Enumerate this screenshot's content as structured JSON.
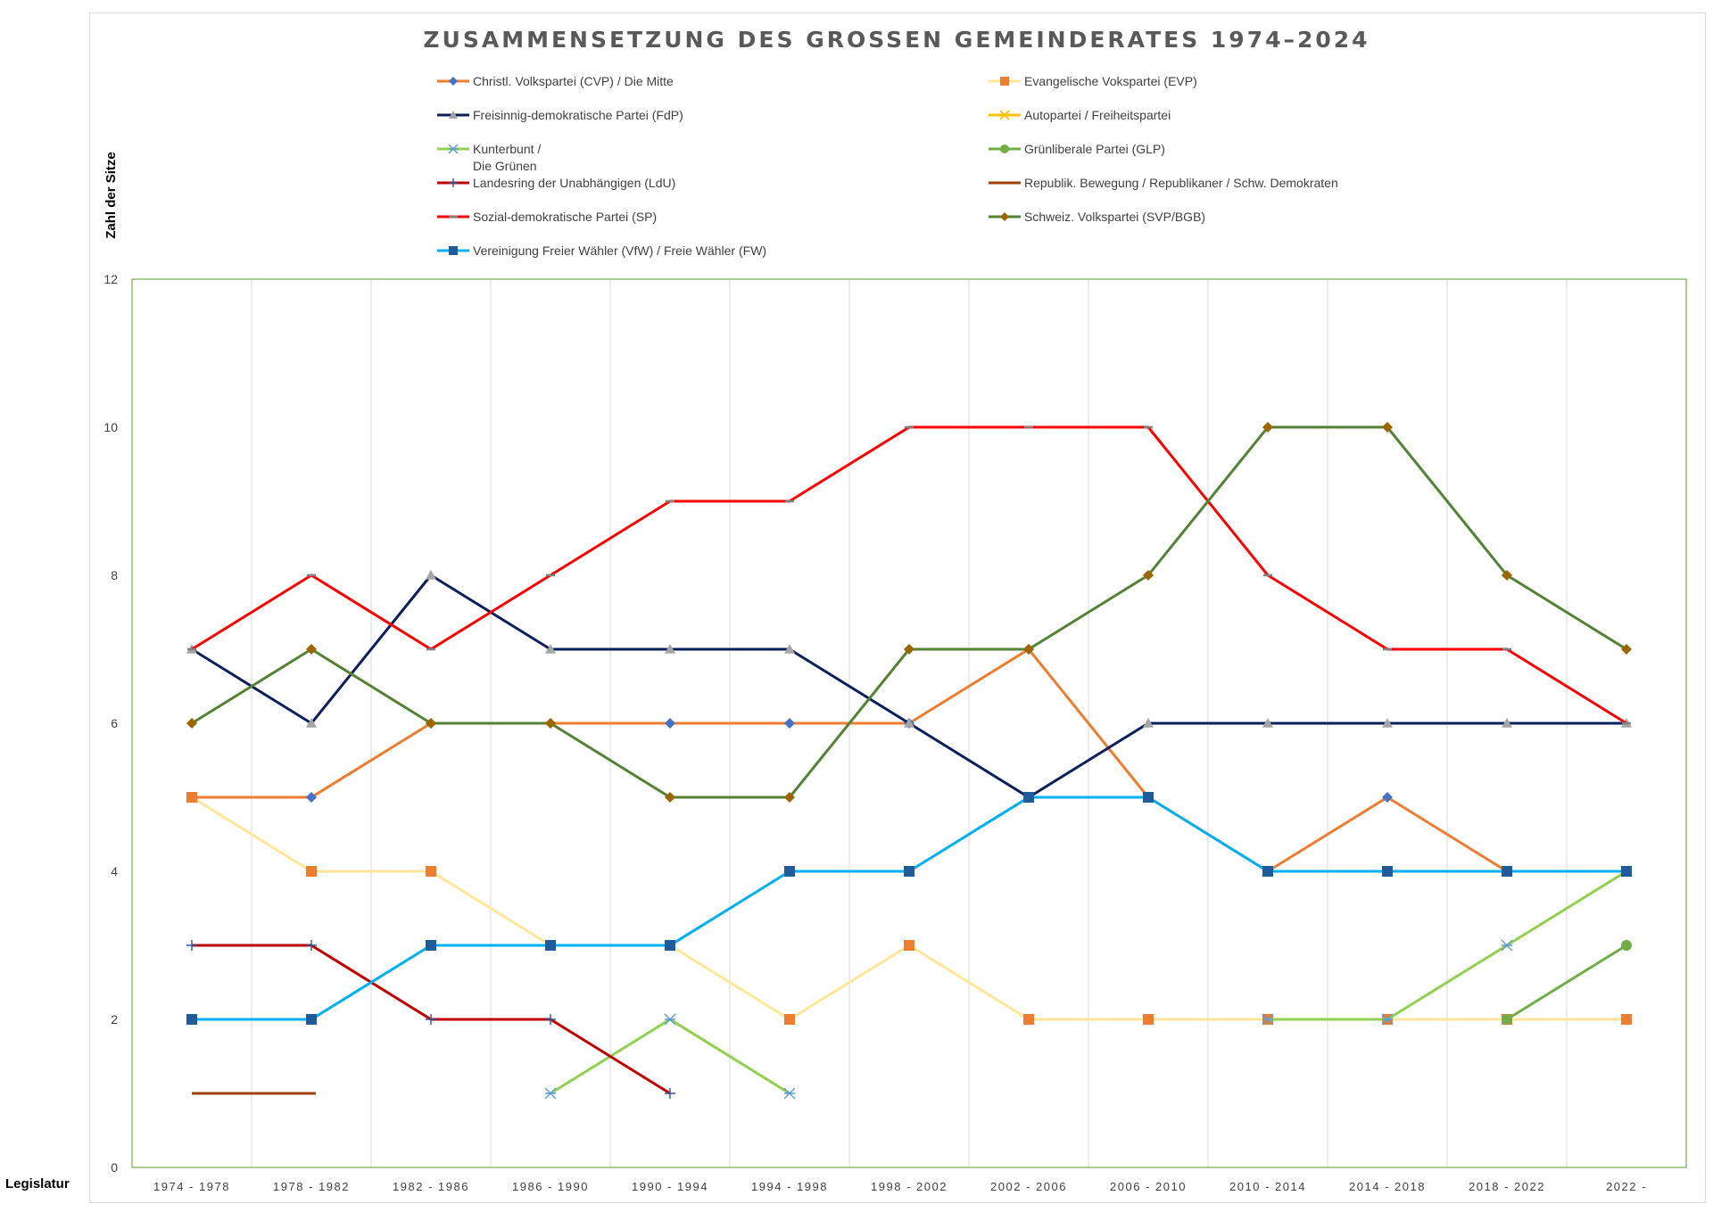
{
  "chart_data": {
    "type": "line",
    "title": "ZUSAMMENSETZUNG DES GROSSEN GEMEINDERATES 1974–2024",
    "ylabel": "Zahl der Sitze",
    "xlabel": "Legislatur",
    "ylim": [
      0,
      12
    ],
    "yticks": [
      "0",
      "2",
      "4",
      "6",
      "8",
      "10",
      "12"
    ],
    "grid": "vertical",
    "legend_position": "top",
    "categories": [
      "1974 - 1978",
      "1978 - 1982",
      "1982 - 1986",
      "1986 - 1990",
      "1990 - 1994",
      "1994 - 1998",
      "1998 - 2002",
      "2002 - 2006",
      "2006 - 2010",
      "2010 - 2014",
      "2014 - 2018",
      "2018 - 2022",
      "2022 -"
    ],
    "series": [
      {
        "name": "Christl. Volkspartei (CVP) / Die Mitte",
        "color": "#ed7d31",
        "marker": "diamond",
        "marker_color": "#4472c4",
        "values": [
          5,
          5,
          6,
          6,
          6,
          6,
          6,
          7,
          5,
          4,
          5,
          4,
          4
        ]
      },
      {
        "name": "Evangelische Vokspartei (EVP)",
        "color": "#ffe699",
        "marker": "square",
        "marker_color": "#ed7d31",
        "values": [
          5,
          4,
          4,
          3,
          3,
          2,
          3,
          2,
          2,
          2,
          2,
          2,
          2
        ]
      },
      {
        "name": "Freisinnig-demokratische Partei (FdP)",
        "color": "#0b1f5c",
        "marker": "triangle",
        "marker_color": "#a5a5a5",
        "values": [
          7,
          6,
          8,
          7,
          7,
          7,
          6,
          5,
          6,
          6,
          6,
          6,
          6
        ]
      },
      {
        "name": "Autopartei / Freiheitspartei",
        "color": "#ffc000",
        "marker": "x",
        "marker_color": "#ffc000",
        "values": [
          null,
          null,
          null,
          null,
          null,
          null,
          null,
          null,
          null,
          null,
          null,
          null,
          null
        ]
      },
      {
        "name": "Kunterbunt / Die Grünen",
        "color": "#92d050",
        "marker": "star",
        "marker_color": "#5b9bd5",
        "values": [
          null,
          null,
          null,
          1,
          2,
          1,
          null,
          null,
          null,
          2,
          2,
          3,
          4
        ]
      },
      {
        "name": "Grünliberale Partei (GLP)",
        "color": "#70ad47",
        "marker": "circle",
        "marker_color": "#70ad47",
        "values": [
          null,
          null,
          null,
          null,
          null,
          null,
          null,
          null,
          null,
          null,
          null,
          2,
          3
        ]
      },
      {
        "name": "Landesring der Unabhängigen (LdU)",
        "color": "#c00000",
        "marker": "plus",
        "marker_color": "#2f5597",
        "values": [
          3,
          3,
          2,
          2,
          1,
          null,
          null,
          null,
          null,
          null,
          null,
          null,
          null
        ]
      },
      {
        "name": "Republik. Bewegung / Republikaner / Schw. Demokraten",
        "color": "#a0410d",
        "marker": "none",
        "marker_color": "#a0410d",
        "values": [
          1,
          1,
          null,
          null,
          null,
          null,
          null,
          null,
          null,
          null,
          null,
          null,
          null
        ]
      },
      {
        "name": "Sozial-demokratische Partei (SP)",
        "color": "#ff0000",
        "marker": "dash",
        "marker_color": "#808080",
        "values": [
          7,
          8,
          7,
          8,
          9,
          9,
          10,
          10,
          10,
          8,
          7,
          7,
          6
        ]
      },
      {
        "name": "Schweiz. Volkspartei (SVP/BGB)",
        "color": "#548235",
        "marker": "diamond",
        "marker_color": "#9c6500",
        "values": [
          6,
          7,
          6,
          6,
          5,
          5,
          7,
          7,
          8,
          10,
          10,
          8,
          7
        ]
      },
      {
        "name": "Vereinigung Freier Wähler (VfW) / Freie Wähler (FW)",
        "color": "#00b0f0",
        "marker": "square",
        "marker_color": "#1f5c99",
        "values": [
          2,
          2,
          3,
          3,
          3,
          4,
          4,
          5,
          5,
          4,
          4,
          4,
          4
        ]
      }
    ]
  }
}
